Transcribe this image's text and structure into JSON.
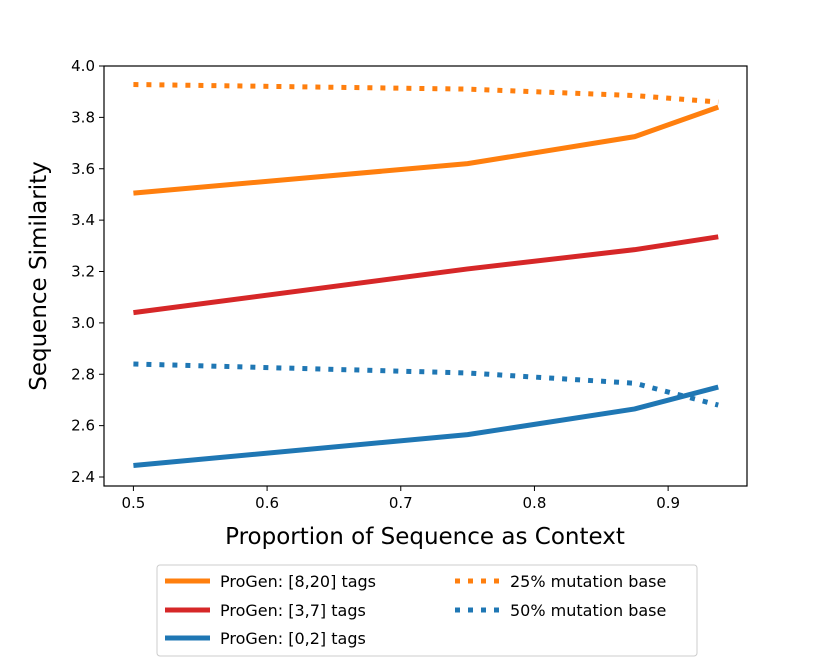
{
  "chart_data": {
    "type": "line",
    "xlabel": "Proportion of Sequence as Context",
    "ylabel": "Sequence Similarity",
    "xlim": [
      0.478,
      0.959
    ],
    "ylim": [
      2.365,
      4.0
    ],
    "xticks": [
      0.5,
      0.6,
      0.7,
      0.8,
      0.9
    ],
    "xtick_labels": [
      "0.5",
      "0.6",
      "0.7",
      "0.8",
      "0.9"
    ],
    "yticks": [
      2.4,
      2.6,
      2.8,
      3.0,
      3.2,
      3.4,
      3.6,
      3.8,
      4.0
    ],
    "ytick_labels": [
      "2.4",
      "2.6",
      "2.8",
      "3.0",
      "3.2",
      "3.4",
      "3.6",
      "3.8",
      "4.0"
    ],
    "grid": false,
    "legend_placement": "below",
    "x": [
      0.5,
      0.75,
      0.875,
      0.9375
    ],
    "series": [
      {
        "name": "ProGen: [8,20] tags",
        "color": "#ff7f0e",
        "style": "solid",
        "values": [
          3.505,
          3.62,
          3.725,
          3.84
        ]
      },
      {
        "name": "ProGen: [3,7] tags",
        "color": "#d62728",
        "style": "solid",
        "values": [
          3.04,
          3.21,
          3.285,
          3.335
        ]
      },
      {
        "name": "ProGen: [0,2] tags",
        "color": "#1f77b4",
        "style": "solid",
        "values": [
          2.445,
          2.565,
          2.665,
          2.75
        ]
      },
      {
        "name": "25% mutation base",
        "color": "#ff7f0e",
        "style": "dotted",
        "values": [
          3.928,
          3.91,
          3.885,
          3.86
        ]
      },
      {
        "name": "50% mutation base",
        "color": "#1f77b4",
        "style": "dotted",
        "values": [
          2.84,
          2.805,
          2.765,
          2.68
        ]
      }
    ]
  }
}
